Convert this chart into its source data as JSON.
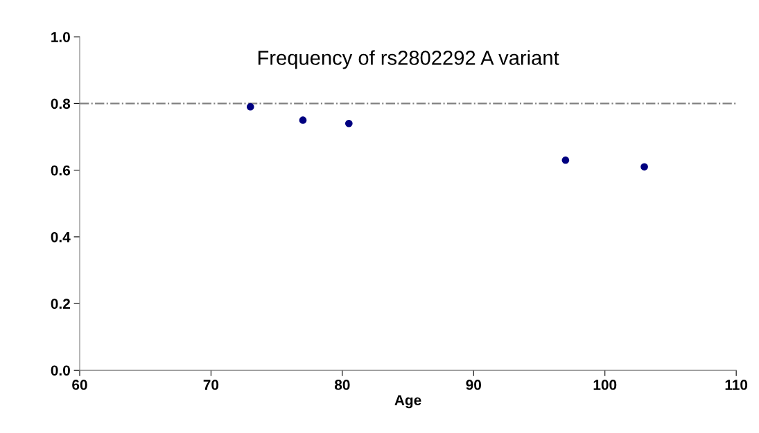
{
  "chart_data": {
    "type": "scatter",
    "title": "Frequency of rs2802292 A variant",
    "xlabel": "Age",
    "x": [
      73,
      77,
      80.5,
      97,
      103
    ],
    "series": [
      {
        "color": "#000080",
        "values": [
          0.79,
          0.75,
          0.74,
          0.63,
          0.61
        ]
      }
    ],
    "xlim": [
      60,
      110
    ],
    "xticks": [
      60,
      70,
      80,
      90,
      100,
      110
    ],
    "ylim": [
      0,
      1
    ],
    "yticks": [
      {
        "value": 0,
        "label": "0.0"
      },
      {
        "value": 0.2,
        "label": "0.2"
      },
      {
        "value": 0.4,
        "label": "0.4"
      },
      {
        "value": 0.6,
        "label": "0.6"
      },
      {
        "value": 0.8,
        "label": "0.8"
      },
      {
        "value": 1,
        "label": "1.0"
      }
    ],
    "ref_lines": [
      {
        "axis": "y",
        "value": 0.8,
        "color": "#808080",
        "line_style": "dashdot"
      }
    ],
    "grid": false,
    "legend": false,
    "marker": "circle"
  }
}
